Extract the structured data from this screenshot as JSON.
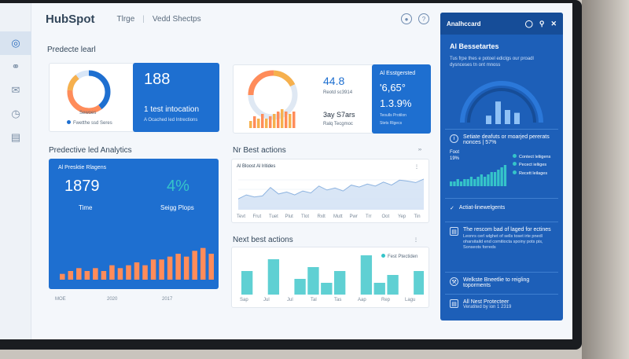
{
  "header": {
    "logo": "HubSpot",
    "nav": [
      "Tlrge",
      "Vedd Shectps"
    ]
  },
  "sidebar": {
    "items": [
      {
        "icon": "globe-icon"
      },
      {
        "icon": "chat-icon"
      },
      {
        "icon": "mail-icon"
      },
      {
        "icon": "clock-icon"
      },
      {
        "icon": "document-icon"
      }
    ]
  },
  "main": {
    "section1_title": "Predecte learl",
    "card1": {
      "donut_label": "Sewoes",
      "legend": "Fwetthe ssd Seres",
      "value": "188",
      "caption": "1 test intocation",
      "subcaption": "A Ocached led Intrections"
    },
    "card2": {
      "value": "44.8",
      "sub1": "Reotd sc3914",
      "value2": "3ay S7ars",
      "sub2": "Ralq Tecgmoc"
    },
    "card3": {
      "title": "Al Esstgersted",
      "value1": "'6,65°",
      "value2": "1.3.9%",
      "sub1": "Teoulls Protilon",
      "sub2": "Stets Rlgecs"
    },
    "section2_title": "Predective led Analytics",
    "card4": {
      "title": "Al Presktie Rlagens",
      "value1": "1879",
      "value2": "4%",
      "label1": "Time",
      "label2": "Seigg Plops",
      "x_labels": [
        "MOE",
        "2020",
        "2017"
      ]
    },
    "section3_title": "Nr Best actions",
    "card5": {
      "title": "Al Bloost Al lritides",
      "x_labels": [
        "Tevt",
        "Frut",
        "Tuet",
        "Plut",
        "Tlot",
        "Rxlt",
        "Mutt",
        "Pwr",
        "Trr",
        "Oot",
        "Yep",
        "Tin"
      ]
    },
    "section4_title": "Next best actions",
    "card6": {
      "legend": "Fest Ptectiden",
      "x_labels": [
        "Sap",
        "Jul",
        "Jul",
        "Tal",
        "Tas",
        "Aap",
        "Rep",
        "Lagu"
      ]
    }
  },
  "rpanel": {
    "title": "Analhccard",
    "insights_title": "Al Bessetartes",
    "insights_text": "Tus frpe thes e potoel ediclgs our proadl dysnceses tn ont mnoss",
    "row1_text": "Setiate deafuts or moarjed pererats nonces | 57%",
    "mini_title": "Foot",
    "mini_value": "19%",
    "mini_legend": [
      "Contect leliigens",
      "Pecect ieliiges",
      "Recett leilages"
    ],
    "row2_text": "Actiat-linewelgents",
    "row3_title": "The rescom bad of laged for ectines",
    "row3_text": "Leonrs cerl wlghet of sells toset irte pnedl oharsitaild end comitiocta spoiny pots pis, Sonseots forreds",
    "row4_text": "Welkste Bneetlie to reigling toporments",
    "row5_title": "All Nest Protecteer",
    "row5_text": "Veratited by ion 1 2319"
  },
  "chart_data": [
    {
      "type": "bar",
      "title": "",
      "values": [
        3,
        5,
        4,
        6,
        4,
        5,
        6,
        7,
        8,
        7,
        6,
        7
      ]
    },
    {
      "type": "bar",
      "title": "Al Presktie Rlagens",
      "categories": [
        "MOE",
        "",
        "",
        "",
        "",
        "",
        "",
        "2020",
        "",
        "",
        "",
        "",
        "",
        "2017",
        "",
        "",
        "",
        "",
        ""
      ],
      "values": [
        2,
        3,
        4,
        3,
        4,
        3,
        5,
        4,
        5,
        6,
        5,
        7,
        7,
        8,
        9,
        8,
        10,
        11,
        9
      ]
    },
    {
      "type": "area",
      "title": "Al Bloost Al lritides",
      "values": [
        22,
        30,
        26,
        28,
        45,
        32,
        36,
        30,
        38,
        34,
        48,
        40,
        44,
        38,
        50,
        46,
        52,
        48,
        56,
        50,
        60,
        58,
        55,
        62
      ]
    },
    {
      "type": "bar",
      "title": "Next best actions",
      "categories": [
        "Sap",
        "",
        "Jul",
        "",
        "Jul",
        "",
        "Tal",
        "",
        "Tas",
        "",
        "Aap",
        "",
        "Rep",
        "Lagu"
      ],
      "values": [
        6,
        0,
        9,
        0,
        4,
        7,
        3,
        6,
        0,
        10,
        3,
        5,
        0,
        6
      ]
    },
    {
      "type": "bar",
      "title": "Foot",
      "values": [
        2,
        2,
        3,
        2,
        3,
        3,
        4,
        3,
        4,
        5,
        4,
        5,
        6,
        6,
        7,
        8,
        9
      ]
    },
    {
      "type": "bar",
      "title": "Al Bessetartes",
      "values": [
        3,
        8,
        5,
        4
      ]
    }
  ]
}
